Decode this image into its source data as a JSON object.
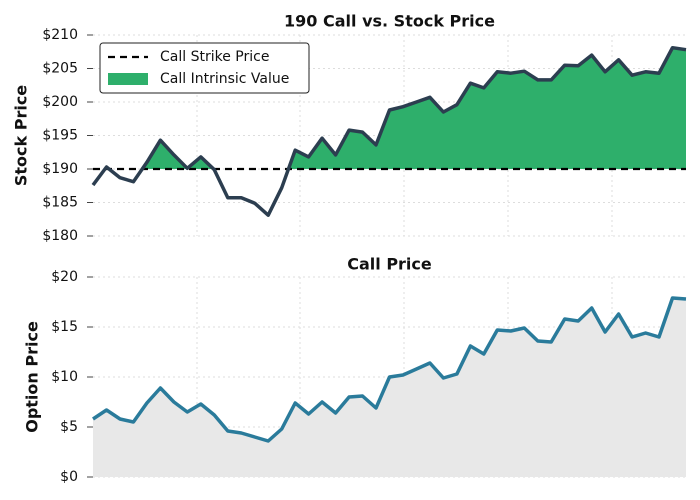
{
  "chart_data": [
    {
      "type": "area-line",
      "title": "190 Call vs. Stock Price",
      "ylabel": "Stock Price",
      "values": [
        187.6,
        190.3,
        188.7,
        188.1,
        191,
        194.3,
        192.1,
        190.1,
        191.8,
        189.9,
        185.7,
        185.7,
        184.9,
        183.1,
        187.2,
        192.8,
        191.8,
        194.6,
        192.1,
        195.8,
        195.5,
        193.6,
        198.8,
        199.3,
        200,
        200.7,
        198.5,
        199.6,
        202.8,
        202.1,
        204.5,
        204.3,
        204.6,
        203.3,
        203.3,
        205.5,
        205.4,
        207,
        204.5,
        206.3,
        204,
        204.5,
        204.3,
        208.1,
        207.8
      ],
      "color": "#2c3e50",
      "strike": {
        "name": "Call Strike Price",
        "value": 190,
        "color": "#000000"
      },
      "fill": {
        "name": "Call Intrinsic Value",
        "color": "#2eaf6b"
      },
      "ylim": [
        180,
        210
      ],
      "yticks": [
        {
          "value": 180,
          "label": "$180"
        },
        {
          "value": 185,
          "label": "$185"
        },
        {
          "value": 190,
          "label": "$190"
        },
        {
          "value": 195,
          "label": "$195"
        },
        {
          "value": 200,
          "label": "$200"
        },
        {
          "value": 205,
          "label": "$205"
        },
        {
          "value": 210,
          "label": "$210"
        }
      ],
      "grid": true,
      "legend": "upper left"
    },
    {
      "type": "area-line",
      "title": "Call Price",
      "ylabel": "Option Price",
      "values": [
        5.8,
        6.7,
        5.8,
        5.5,
        7.4,
        8.9,
        7.5,
        6.5,
        7.3,
        6.2,
        4.6,
        4.4,
        4.0,
        3.6,
        4.8,
        7.4,
        6.3,
        7.5,
        6.4,
        8.0,
        8.1,
        6.9,
        10.0,
        10.2,
        10.8,
        11.4,
        9.9,
        10.3,
        13.1,
        12.3,
        14.7,
        14.6,
        14.9,
        13.6,
        13.5,
        15.8,
        15.6,
        16.9,
        14.5,
        16.3,
        14.0,
        14.4,
        14.0,
        17.9,
        17.8
      ],
      "color": "#2a7b9b",
      "fill": {
        "color": "#e8e8e8"
      },
      "ylim": [
        0,
        20
      ],
      "yticks": [
        {
          "value": 0,
          "label": "$0"
        },
        {
          "value": 5,
          "label": "$5"
        },
        {
          "value": 10,
          "label": "$10"
        },
        {
          "value": 15,
          "label": "$15"
        },
        {
          "value": 20,
          "label": "$20"
        }
      ],
      "grid": true
    }
  ]
}
